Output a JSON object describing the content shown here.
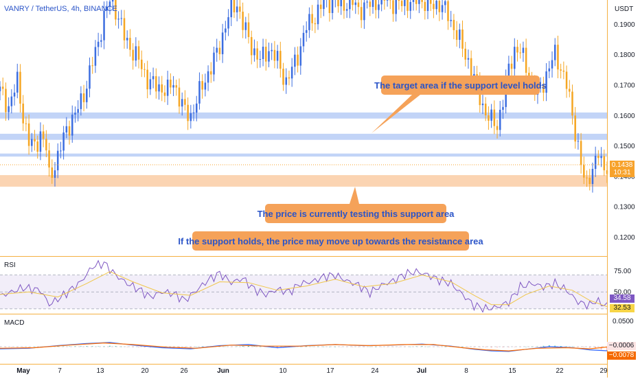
{
  "header": {
    "symbol": "VANRY / TetherUS, 4h, BINANCE",
    "currency": "USDT"
  },
  "colors": {
    "up_candle": "#3d6ee0",
    "down_candle": "#f5a623",
    "support_zone": "#fbd4b2",
    "resistance_zone": "#c2d4f7",
    "callout_bg": "#f5a259",
    "callout_text": "#2a54c8",
    "rsi_line": "#7e57c2",
    "rsi_ma": "#f0c64a",
    "macd_line": "#2962ff",
    "signal_line": "#ff6d00"
  },
  "chart_data": [
    {
      "type": "candlestick",
      "title": "VANRY / TetherUS, 4h, BINANCE",
      "y_unit": "USDT",
      "y_ticks": [
        "0.1200",
        "0.1300",
        "0.1400",
        "0.1500",
        "0.1600",
        "0.1700",
        "0.1800",
        "0.1900"
      ],
      "x_ticks": [
        "May",
        "7",
        "13",
        "20",
        "26",
        "Jun",
        "10",
        "17",
        "24",
        "Jul",
        "8",
        "15",
        "22",
        "29"
      ],
      "ylim": [
        0.114,
        0.198
      ],
      "current_price": "0.1438",
      "countdown": "10:31",
      "zones": [
        {
          "kind": "resistance",
          "y_range": [
            0.159,
            0.161
          ]
        },
        {
          "kind": "resistance",
          "y_range": [
            0.152,
            0.154
          ]
        },
        {
          "kind": "resistance",
          "y_range": [
            0.1465,
            0.1475
          ]
        },
        {
          "kind": "support",
          "y_range": [
            0.1366,
            0.1404
          ]
        }
      ],
      "close_path": [
        [
          0,
          0.168
        ],
        [
          3,
          0.163
        ],
        [
          6,
          0.171
        ],
        [
          8,
          0.16
        ],
        [
          10,
          0.151
        ],
        [
          12,
          0.15
        ],
        [
          14,
          0.154
        ],
        [
          16,
          0.149
        ],
        [
          17,
          0.14
        ],
        [
          20,
          0.146
        ],
        [
          23,
          0.156
        ],
        [
          26,
          0.16
        ],
        [
          30,
          0.17
        ],
        [
          33,
          0.181
        ],
        [
          36,
          0.192
        ],
        [
          38,
          0.198
        ],
        [
          40,
          0.195
        ],
        [
          43,
          0.186
        ],
        [
          46,
          0.181
        ],
        [
          48,
          0.178
        ],
        [
          51,
          0.172
        ],
        [
          53,
          0.17
        ],
        [
          56,
          0.169
        ],
        [
          58,
          0.168
        ],
        [
          60,
          0.171
        ],
        [
          62,
          0.166
        ],
        [
          64,
          0.161
        ],
        [
          66,
          0.16
        ],
        [
          68,
          0.165
        ],
        [
          71,
          0.172
        ],
        [
          74,
          0.178
        ],
        [
          76,
          0.183
        ],
        [
          78,
          0.19
        ],
        [
          80,
          0.195
        ],
        [
          82,
          0.197
        ],
        [
          84,
          0.19
        ],
        [
          86,
          0.185
        ],
        [
          88,
          0.181
        ],
        [
          90,
          0.178
        ],
        [
          93,
          0.182
        ],
        [
          96,
          0.178
        ],
        [
          99,
          0.171
        ],
        [
          101,
          0.175
        ],
        [
          103,
          0.18
        ],
        [
          106,
          0.189
        ],
        [
          109,
          0.193
        ],
        [
          112,
          0.197
        ],
        [
          115,
          0.198
        ],
        [
          118,
          0.196
        ],
        [
          121,
          0.198
        ],
        [
          124,
          0.195
        ],
        [
          127,
          0.196
        ],
        [
          131,
          0.198
        ],
        [
          134,
          0.199
        ],
        [
          137,
          0.196
        ],
        [
          139,
          0.197
        ],
        [
          143,
          0.198
        ],
        [
          146,
          0.198
        ],
        [
          149,
          0.196
        ],
        [
          152,
          0.197
        ],
        [
          155,
          0.193
        ],
        [
          158,
          0.187
        ],
        [
          160,
          0.182
        ],
        [
          162,
          0.178
        ],
        [
          164,
          0.172
        ],
        [
          166,
          0.166
        ],
        [
          168,
          0.161
        ],
        [
          170,
          0.158
        ],
        [
          172,
          0.157
        ],
        [
          174,
          0.165
        ],
        [
          176,
          0.175
        ],
        [
          178,
          0.182
        ],
        [
          180,
          0.181
        ],
        [
          182,
          0.176
        ],
        [
          184,
          0.17
        ],
        [
          186,
          0.167
        ],
        [
          188,
          0.171
        ],
        [
          190,
          0.176
        ],
        [
          192,
          0.18
        ],
        [
          194,
          0.176
        ],
        [
          196,
          0.17
        ],
        [
          197,
          0.165
        ],
        [
          198,
          0.16
        ],
        [
          199,
          0.155
        ],
        [
          200,
          0.15
        ],
        [
          201,
          0.144
        ],
        [
          202,
          0.139
        ],
        [
          203,
          0.137
        ],
        [
          204,
          0.141
        ],
        [
          205,
          0.143
        ],
        [
          206,
          0.145
        ],
        [
          207,
          0.147
        ],
        [
          208,
          0.144
        ],
        [
          209,
          0.143
        ],
        [
          210,
          0.144
        ]
      ]
    },
    {
      "type": "line",
      "title": "RSI",
      "y_ticks": [
        "75.00",
        "50.00"
      ],
      "ylim": [
        25,
        90
      ],
      "band": [
        30,
        70
      ],
      "last_values": [
        "34.58",
        "32.53"
      ],
      "series": [
        {
          "role": "rsi",
          "path": [
            [
              0,
              45
            ],
            [
              8,
              55
            ],
            [
              14,
              52
            ],
            [
              17,
              35
            ],
            [
              22,
              46
            ],
            [
              28,
              62
            ],
            [
              32,
              80
            ],
            [
              36,
              84
            ],
            [
              40,
              70
            ],
            [
              44,
              60
            ],
            [
              48,
              53
            ],
            [
              52,
              44
            ],
            [
              56,
              50
            ],
            [
              60,
              48
            ],
            [
              64,
              40
            ],
            [
              68,
              52
            ],
            [
              72,
              64
            ],
            [
              76,
              72
            ],
            [
              80,
              61
            ],
            [
              84,
              66
            ],
            [
              88,
              53
            ],
            [
              92,
              47
            ],
            [
              96,
              53
            ],
            [
              100,
              50
            ],
            [
              104,
              60
            ],
            [
              108,
              62
            ],
            [
              112,
              68
            ],
            [
              116,
              70
            ],
            [
              120,
              63
            ],
            [
              124,
              58
            ],
            [
              128,
              49
            ],
            [
              132,
              58
            ],
            [
              136,
              63
            ],
            [
              140,
              71
            ],
            [
              144,
              74
            ],
            [
              148,
              70
            ],
            [
              152,
              64
            ],
            [
              156,
              60
            ],
            [
              160,
              47
            ],
            [
              164,
              34
            ],
            [
              168,
              30
            ],
            [
              172,
              32
            ],
            [
              176,
              38
            ],
            [
              180,
              56
            ],
            [
              184,
              60
            ],
            [
              188,
              56
            ],
            [
              192,
              60
            ],
            [
              196,
              52
            ],
            [
              200,
              38
            ],
            [
              204,
              34
            ],
            [
              206,
              40
            ],
            [
              208,
              36
            ],
            [
              210,
              34.58
            ]
          ]
        },
        {
          "role": "rsi_ma",
          "path": [
            [
              0,
              47
            ],
            [
              10,
              50
            ],
            [
              20,
              44
            ],
            [
              30,
              60
            ],
            [
              38,
              74
            ],
            [
              46,
              62
            ],
            [
              56,
              49
            ],
            [
              66,
              46
            ],
            [
              76,
              62
            ],
            [
              86,
              61
            ],
            [
              96,
              52
            ],
            [
              106,
              57
            ],
            [
              116,
              65
            ],
            [
              126,
              56
            ],
            [
              136,
              60
            ],
            [
              146,
              70
            ],
            [
              156,
              62
            ],
            [
              164,
              46
            ],
            [
              170,
              35
            ],
            [
              176,
              35
            ],
            [
              182,
              47
            ],
            [
              190,
              57
            ],
            [
              198,
              52
            ],
            [
              204,
              40
            ],
            [
              210,
              32.53
            ]
          ]
        }
      ]
    },
    {
      "type": "line",
      "title": "MACD",
      "y_ticks": [
        "0.0500"
      ],
      "ylim": [
        -0.03,
        0.06
      ],
      "last_values": [
        "−0.0006",
        "−0.0078"
      ],
      "series": [
        {
          "role": "macd",
          "path": [
            [
              0,
              -0.004
            ],
            [
              10,
              -0.003
            ],
            [
              20,
              0.002
            ],
            [
              30,
              0.006
            ],
            [
              38,
              0.008
            ],
            [
              46,
              0.003
            ],
            [
              56,
              -0.002
            ],
            [
              66,
              -0.004
            ],
            [
              76,
              0.002
            ],
            [
              86,
              0.004
            ],
            [
              96,
              -0.002
            ],
            [
              106,
              0.002
            ],
            [
              116,
              0.004
            ],
            [
              126,
              0.002
            ],
            [
              136,
              0.003
            ],
            [
              146,
              0.005
            ],
            [
              156,
              0.001
            ],
            [
              164,
              -0.005
            ],
            [
              170,
              -0.008
            ],
            [
              176,
              -0.009
            ],
            [
              182,
              -0.005
            ],
            [
              190,
              0.0
            ],
            [
              198,
              -0.002
            ],
            [
              204,
              -0.006
            ],
            [
              210,
              -0.0078
            ]
          ]
        },
        {
          "role": "signal",
          "path": [
            [
              0,
              -0.003
            ],
            [
              12,
              -0.002
            ],
            [
              24,
              0.003
            ],
            [
              36,
              0.007
            ],
            [
              46,
              0.004
            ],
            [
              58,
              -0.001
            ],
            [
              68,
              -0.003
            ],
            [
              80,
              0.003
            ],
            [
              92,
              0.001
            ],
            [
              104,
              0.001
            ],
            [
              116,
              0.004
            ],
            [
              128,
              0.002
            ],
            [
              140,
              0.004
            ],
            [
              150,
              0.004
            ],
            [
              160,
              -0.002
            ],
            [
              168,
              -0.006
            ],
            [
              176,
              -0.008
            ],
            [
              186,
              -0.003
            ],
            [
              196,
              -0.002
            ],
            [
              204,
              -0.004
            ],
            [
              210,
              -0.0006
            ]
          ]
        }
      ]
    }
  ],
  "annotations": [
    {
      "text": "The target area if the support level holds"
    },
    {
      "text": "The price is currently testing this support area"
    },
    {
      "text": "If the support holds, the price may move up towards the resistance area"
    }
  ]
}
